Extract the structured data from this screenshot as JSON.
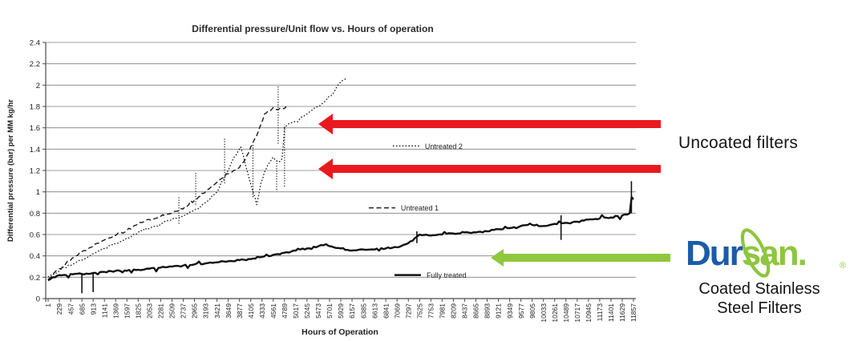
{
  "chart_data": {
    "type": "line",
    "title": "Differential pressure/Unit flow  vs. Hours of operation",
    "xlabel": "Hours of Operation",
    "ylabel": "Differential pressure (bar) per MM kg/hr",
    "xlim": [
      1,
      11857
    ],
    "ylim": [
      0,
      2.4
    ],
    "grid": "horizontal-only",
    "legend_position": "inside-plot",
    "x_ticks": [
      1,
      229,
      457,
      685,
      913,
      1141,
      1369,
      1597,
      1825,
      2053,
      2281,
      2509,
      2737,
      2965,
      3193,
      3421,
      3649,
      3877,
      4105,
      4333,
      4561,
      4789,
      5017,
      5245,
      5473,
      5701,
      5929,
      6157,
      6385,
      6613,
      6841,
      7069,
      7297,
      7525,
      7753,
      7981,
      8209,
      8437,
      8665,
      8893,
      9121,
      9349,
      9577,
      9805,
      10033,
      10261,
      10489,
      10717,
      10945,
      11173,
      11401,
      11629,
      11857
    ],
    "y_ticks": [
      "0",
      "0.2",
      "0.4",
      "0.6",
      "0.8",
      "1",
      "1.2",
      "1.4",
      "1.6",
      "1.8",
      "2",
      "2.2",
      "2.4"
    ],
    "series": [
      {
        "name": "Untreated 2",
        "style": "dotted",
        "color": "#1a1a1a",
        "width": 1.3,
        "legend_anchor": [
          7633,
          1.43
        ],
        "points": [
          [
            1,
            0.2
          ],
          [
            229,
            0.26
          ],
          [
            457,
            0.31
          ],
          [
            685,
            0.36
          ],
          [
            913,
            0.42
          ],
          [
            1141,
            0.47
          ],
          [
            1369,
            0.52
          ],
          [
            1597,
            0.57
          ],
          [
            1825,
            0.62
          ],
          [
            2053,
            0.66
          ],
          [
            2281,
            0.7
          ],
          [
            2509,
            0.74
          ],
          [
            2737,
            0.78
          ],
          [
            2965,
            0.83
          ],
          [
            3193,
            0.9
          ],
          [
            3421,
            1.0
          ],
          [
            3550,
            1.1
          ],
          [
            3649,
            1.2
          ],
          [
            3760,
            1.32
          ],
          [
            3900,
            1.42
          ],
          [
            3950,
            1.35
          ],
          [
            4000,
            1.25
          ],
          [
            4060,
            1.15
          ],
          [
            4120,
            1.05
          ],
          [
            4190,
            0.95
          ],
          [
            4225,
            0.88
          ],
          [
            4260,
            0.95
          ],
          [
            4310,
            1.08
          ],
          [
            4380,
            1.18
          ],
          [
            4450,
            1.25
          ],
          [
            4510,
            1.29
          ],
          [
            4600,
            1.3
          ],
          [
            4660,
            1.28
          ],
          [
            4740,
            1.31
          ],
          [
            4790,
            1.6
          ],
          [
            4850,
            1.63
          ],
          [
            4950,
            1.65
          ],
          [
            5017,
            1.66
          ],
          [
            5130,
            1.7
          ],
          [
            5245,
            1.73
          ],
          [
            5360,
            1.77
          ],
          [
            5473,
            1.8
          ],
          [
            5560,
            1.83
          ],
          [
            5650,
            1.87
          ],
          [
            5730,
            1.9
          ],
          [
            5800,
            1.94
          ],
          [
            5870,
            2.0
          ],
          [
            5929,
            2.03
          ],
          [
            6000,
            2.05
          ],
          [
            6050,
            2.07
          ]
        ],
        "dropout_spikes": [
          [
            2650,
            0.7,
            0.95
          ],
          [
            2990,
            0.88,
            1.18
          ],
          [
            4150,
            0.95,
            1.44
          ],
          [
            4630,
            1.02,
            1.31
          ],
          [
            4790,
            1.05,
            1.63
          ]
        ]
      },
      {
        "name": "Untreated 1",
        "style": "dashed",
        "color": "#1a1a1a",
        "width": 1.4,
        "legend_anchor": [
          7146,
          0.85
        ],
        "points": [
          [
            1,
            0.18
          ],
          [
            120,
            0.24
          ],
          [
            229,
            0.28
          ],
          [
            350,
            0.32
          ],
          [
            457,
            0.36
          ],
          [
            570,
            0.4
          ],
          [
            685,
            0.44
          ],
          [
            800,
            0.46
          ],
          [
            913,
            0.49
          ],
          [
            1030,
            0.52
          ],
          [
            1141,
            0.55
          ],
          [
            1250,
            0.57
          ],
          [
            1369,
            0.59
          ],
          [
            1480,
            0.62
          ],
          [
            1597,
            0.64
          ],
          [
            1710,
            0.67
          ],
          [
            1825,
            0.7
          ],
          [
            1940,
            0.72
          ],
          [
            2053,
            0.74
          ],
          [
            2170,
            0.75
          ],
          [
            2281,
            0.77
          ],
          [
            2400,
            0.79
          ],
          [
            2509,
            0.8
          ],
          [
            2620,
            0.82
          ],
          [
            2737,
            0.84
          ],
          [
            2850,
            0.88
          ],
          [
            2965,
            0.92
          ],
          [
            3080,
            0.96
          ],
          [
            3193,
            1.0
          ],
          [
            3310,
            1.05
          ],
          [
            3421,
            1.09
          ],
          [
            3530,
            1.13
          ],
          [
            3649,
            1.17
          ],
          [
            3760,
            1.2
          ],
          [
            3877,
            1.23
          ],
          [
            3990,
            1.3
          ],
          [
            4105,
            1.42
          ],
          [
            4220,
            1.52
          ],
          [
            4300,
            1.62
          ],
          [
            4385,
            1.73
          ],
          [
            4460,
            1.76
          ],
          [
            4561,
            1.79
          ],
          [
            4660,
            1.77
          ],
          [
            4750,
            1.78
          ],
          [
            4824,
            1.8
          ]
        ],
        "dropout_spikes": [
          [
            3575,
            1.08,
            1.5
          ],
          [
            4660,
            1.45,
            2.0
          ]
        ]
      },
      {
        "name": "Fully treated",
        "style": "solid",
        "color": "#111111",
        "width": 2.4,
        "legend_anchor": [
          7666,
          0.22
        ],
        "points": [
          [
            1,
            0.17
          ],
          [
            100,
            0.2
          ],
          [
            229,
            0.22
          ],
          [
            457,
            0.23
          ],
          [
            685,
            0.23
          ],
          [
            913,
            0.24
          ],
          [
            1141,
            0.25
          ],
          [
            1369,
            0.26
          ],
          [
            1597,
            0.26
          ],
          [
            1825,
            0.27
          ],
          [
            2053,
            0.28
          ],
          [
            2281,
            0.29
          ],
          [
            2509,
            0.3
          ],
          [
            2737,
            0.31
          ],
          [
            2965,
            0.32
          ],
          [
            3193,
            0.33
          ],
          [
            3421,
            0.34
          ],
          [
            3649,
            0.35
          ],
          [
            3877,
            0.36
          ],
          [
            4105,
            0.37
          ],
          [
            4333,
            0.39
          ],
          [
            4561,
            0.41
          ],
          [
            4789,
            0.43
          ],
          [
            5017,
            0.45
          ],
          [
            5245,
            0.47
          ],
          [
            5473,
            0.49
          ],
          [
            5630,
            0.51
          ],
          [
            5790,
            0.48
          ],
          [
            5929,
            0.47
          ],
          [
            6157,
            0.45
          ],
          [
            6385,
            0.46
          ],
          [
            6613,
            0.46
          ],
          [
            6841,
            0.47
          ],
          [
            7069,
            0.48
          ],
          [
            7297,
            0.52
          ],
          [
            7470,
            0.58
          ],
          [
            7525,
            0.6
          ],
          [
            7753,
            0.59
          ],
          [
            7981,
            0.6
          ],
          [
            8209,
            0.61
          ],
          [
            8437,
            0.62
          ],
          [
            8665,
            0.62
          ],
          [
            8893,
            0.63
          ],
          [
            9121,
            0.65
          ],
          [
            9349,
            0.66
          ],
          [
            9577,
            0.68
          ],
          [
            9805,
            0.69
          ],
          [
            10033,
            0.68
          ],
          [
            10261,
            0.7
          ],
          [
            10489,
            0.71
          ],
          [
            10717,
            0.72
          ],
          [
            10945,
            0.74
          ],
          [
            11173,
            0.75
          ],
          [
            11401,
            0.76
          ],
          [
            11629,
            0.78
          ],
          [
            11780,
            0.8
          ],
          [
            11820,
            0.95
          ],
          [
            11857,
            0.93
          ]
        ],
        "dropout_spikes": [
          [
            685,
            0.05,
            0.23
          ],
          [
            913,
            0.06,
            0.24
          ],
          [
            7470,
            0.52,
            0.63
          ],
          [
            10390,
            0.55,
            0.78
          ],
          [
            11815,
            0.8,
            1.1
          ]
        ]
      }
    ]
  },
  "annotations": {
    "uncoated_label": "Uncoated filters",
    "coated_label_line1": "Coated Stainless",
    "coated_label_line2": "Steel Filters",
    "red_arrow_color": "#e9191f",
    "green_arrow_color": "#8fc83e"
  },
  "logo": {
    "dur": "Dur",
    "san": "san",
    "period": ".",
    "registered": "®",
    "blue": "#1b5ca9",
    "green": "#8dc63f"
  }
}
